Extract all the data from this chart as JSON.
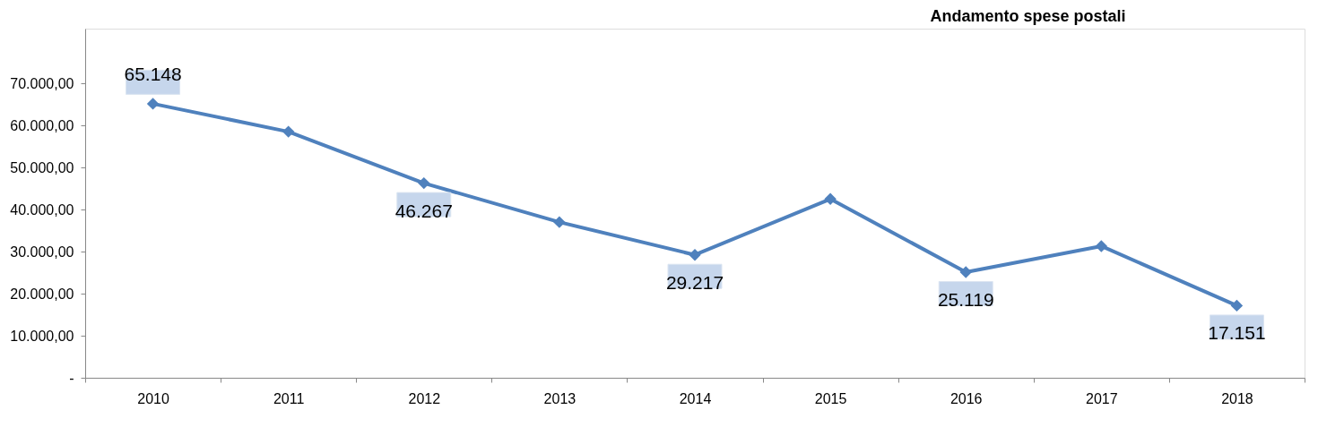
{
  "chart_data": {
    "type": "line",
    "title": "Andamento spese postali",
    "categories": [
      "2010",
      "2011",
      "2012",
      "2013",
      "2014",
      "2015",
      "2016",
      "2017",
      "2018"
    ],
    "series": [
      {
        "color": "#4f81bd",
        "values": [
          65148,
          58500,
          46267,
          37000,
          29217,
          42500,
          25119,
          31300,
          17151
        ],
        "value_labels": [
          "65.148",
          null,
          "46.267",
          null,
          "29.217",
          null,
          "25.119",
          null,
          "17.151"
        ]
      }
    ],
    "ylim": [
      0,
      83000
    ],
    "yticks": [
      {
        "value": 0,
        "label": "-"
      },
      {
        "value": 10000,
        "label": "10.000,00"
      },
      {
        "value": 20000,
        "label": "20.000,00"
      },
      {
        "value": 30000,
        "label": "30.000,00"
      },
      {
        "value": 40000,
        "label": "40.000,00"
      },
      {
        "value": 50000,
        "label": "50.000,00"
      },
      {
        "value": 60000,
        "label": "60.000,00"
      },
      {
        "value": 70000,
        "label": "70.000,00"
      }
    ],
    "grid": false,
    "marker": "diamond",
    "line_style": "solid"
  }
}
